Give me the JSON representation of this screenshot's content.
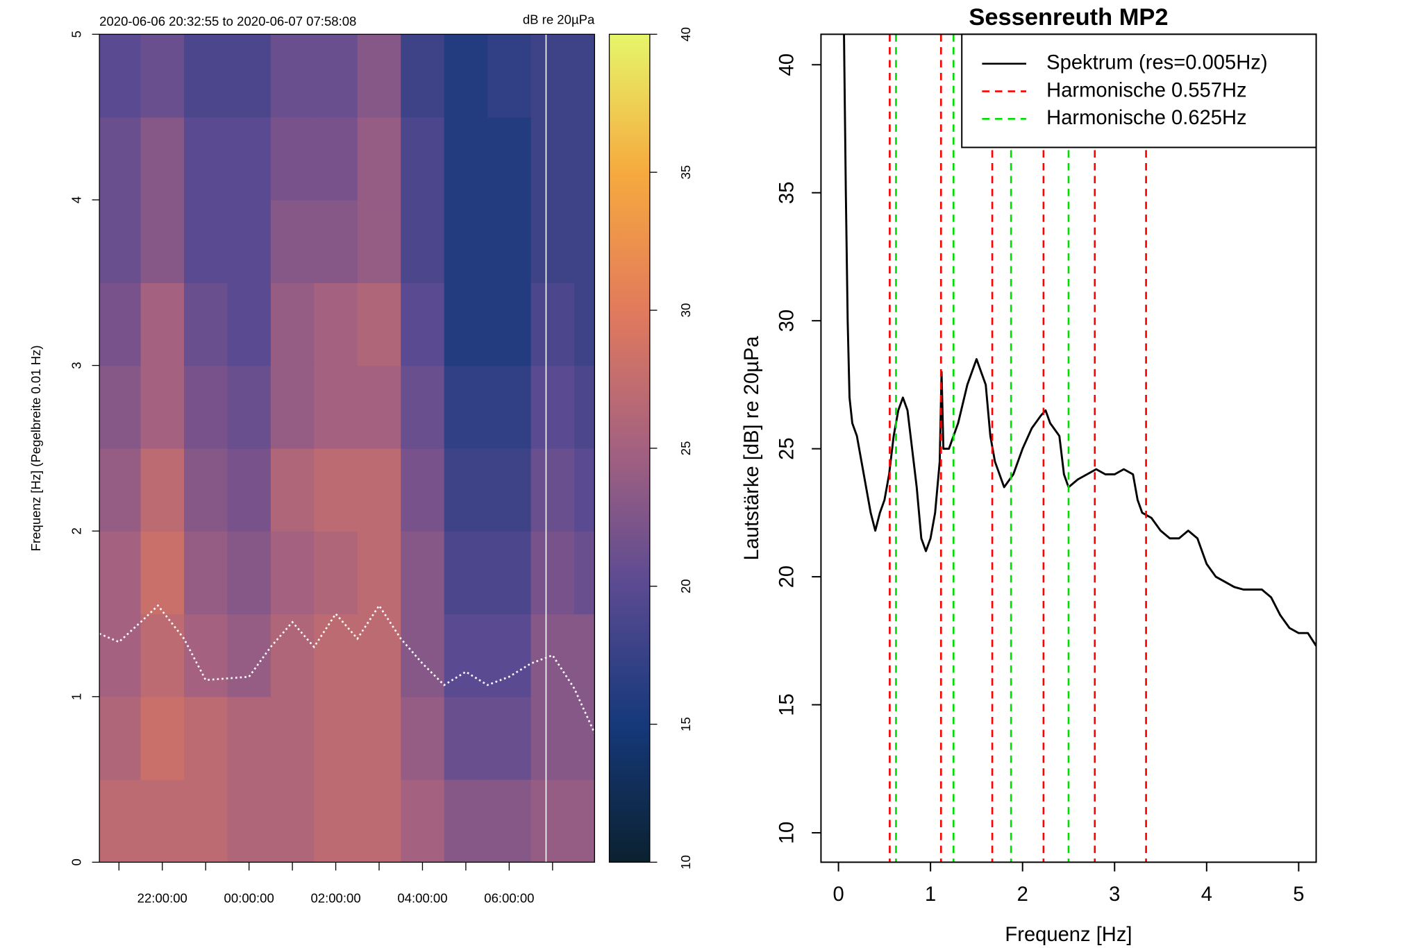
{
  "chart_data": [
    {
      "type": "heatmap",
      "title": "2020-06-06 20:32:55 to 2020-06-07 07:58:08",
      "colorbar_label": "dB re 20µPa",
      "y_label": "Frequenz [Hz] (Pegelbreite 0.01 Hz)",
      "xlim": [
        20.549,
        31.969
      ],
      "xticks": [
        {
          "value": 22,
          "label": "22:00:00"
        },
        {
          "value": 24,
          "label": "00:00:00"
        },
        {
          "value": 26,
          "label": "02:00:00"
        },
        {
          "value": 28,
          "label": "04:00:00"
        },
        {
          "value": 30,
          "label": "06:00:00"
        }
      ],
      "xminorticks": [
        21,
        23,
        25,
        27,
        29,
        31
      ],
      "ylim": [
        0,
        5
      ],
      "yticks": [
        0,
        1,
        2,
        3,
        4,
        5
      ],
      "zlim": [
        10,
        40
      ],
      "zticks": [
        10,
        15,
        20,
        25,
        30,
        35,
        40
      ],
      "colors": [
        "#0b2130",
        "#15397a",
        "#5a4a92",
        "#a46180",
        "#e27a5c",
        "#f6aa3e",
        "#e6f66a"
      ],
      "xbins": [
        20.549,
        21.5,
        22.5,
        23.5,
        24.5,
        25.5,
        26.5,
        27.5,
        28.5,
        29.5,
        30.5,
        31.5,
        31.969
      ],
      "ybins": [
        0,
        0.5,
        1,
        1.5,
        2,
        2.5,
        3,
        3.5,
        4,
        4.5,
        5
      ],
      "z": [
        [
          27,
          27,
          27,
          26,
          26,
          27,
          27,
          25,
          23,
          23,
          24,
          24
        ],
        [
          26,
          28,
          27,
          26,
          26,
          27,
          27,
          24,
          21,
          21,
          23,
          23
        ],
        [
          25,
          27,
          25,
          24,
          26,
          27,
          27,
          23,
          20,
          20,
          23,
          23
        ],
        [
          25,
          28,
          24,
          23,
          25,
          26,
          27,
          23,
          19,
          19,
          22,
          21
        ],
        [
          24,
          27,
          23,
          22,
          26,
          27,
          27,
          22,
          18,
          18,
          21,
          20
        ],
        [
          23,
          25,
          22,
          21,
          24,
          25,
          25,
          21,
          17,
          17,
          20,
          19
        ],
        [
          22,
          25,
          21,
          20,
          24,
          25,
          26,
          20,
          16,
          16,
          19,
          18
        ],
        [
          21,
          23,
          20,
          20,
          23,
          23,
          24,
          19,
          16,
          16,
          18,
          18
        ],
        [
          21,
          23,
          20,
          20,
          22,
          22,
          24,
          19,
          16,
          16,
          18,
          18
        ],
        [
          20,
          21,
          19,
          19,
          21,
          21,
          23,
          18,
          16,
          17,
          18,
          18
        ]
      ],
      "series": [
        {
          "color": "#ffffff",
          "x": [
            20.549,
            21.0,
            21.5,
            21.9,
            22.5,
            23.0,
            24.0,
            24.5,
            25.0,
            25.5,
            26.0,
            26.5,
            27.0,
            27.5,
            28.0,
            28.5,
            29.0,
            29.5,
            30.0,
            30.5,
            31.0,
            31.5,
            31.969
          ],
          "values": [
            1.38,
            1.33,
            1.45,
            1.55,
            1.35,
            1.1,
            1.12,
            1.3,
            1.45,
            1.3,
            1.5,
            1.35,
            1.55,
            1.35,
            1.2,
            1.07,
            1.15,
            1.07,
            1.12,
            1.2,
            1.25,
            1.05,
            0.78
          ]
        }
      ],
      "vlines": [
        30.85
      ],
      "vline_color": "#ffffff"
    },
    {
      "type": "line",
      "title": "Sessenreuth MP2",
      "x_label": "Frequenz [Hz]",
      "y_label": "Lautstärke [dB] re 20µPa",
      "xlim": [
        -0.19,
        5.19
      ],
      "xticks": [
        0,
        1,
        2,
        3,
        4,
        5
      ],
      "ylim": [
        8.85,
        41.19
      ],
      "yticks": [
        10,
        15,
        20,
        25,
        30,
        35,
        40
      ],
      "legend": "top-right",
      "series": [
        {
          "name": "Spektrum (res=0.005Hz)",
          "color": "#000000",
          "x": [
            0.06,
            0.08,
            0.1,
            0.12,
            0.15,
            0.2,
            0.25,
            0.3,
            0.35,
            0.4,
            0.45,
            0.5,
            0.55,
            0.6,
            0.65,
            0.7,
            0.75,
            0.8,
            0.85,
            0.9,
            0.95,
            1.0,
            1.05,
            1.1,
            1.12,
            1.14,
            1.2,
            1.3,
            1.4,
            1.5,
            1.55,
            1.6,
            1.65,
            1.7,
            1.8,
            1.9,
            2.0,
            2.1,
            2.2,
            2.25,
            2.3,
            2.4,
            2.45,
            2.5,
            2.6,
            2.7,
            2.8,
            2.9,
            3.0,
            3.1,
            3.2,
            3.25,
            3.3,
            3.4,
            3.5,
            3.6,
            3.7,
            3.8,
            3.9,
            4.0,
            4.1,
            4.2,
            4.3,
            4.4,
            4.5,
            4.6,
            4.7,
            4.8,
            4.9,
            5.0,
            5.1,
            5.19
          ],
          "values": [
            41.19,
            35,
            30,
            27,
            26,
            25.5,
            24.5,
            23.5,
            22.5,
            21.8,
            22.5,
            23,
            24,
            25.5,
            26.5,
            27,
            26.5,
            25,
            23.5,
            21.5,
            21,
            21.5,
            22.5,
            24.5,
            28,
            25,
            25,
            26,
            27.5,
            28.5,
            28,
            27.5,
            25.5,
            24.5,
            23.5,
            24,
            25,
            25.8,
            26.3,
            26.5,
            26,
            25.5,
            24,
            23.5,
            23.8,
            24,
            24.2,
            24,
            24,
            24.2,
            24,
            23,
            22.5,
            22.3,
            21.8,
            21.5,
            21.5,
            21.8,
            21.5,
            20.5,
            20,
            19.8,
            19.6,
            19.5,
            19.5,
            19.5,
            19.2,
            18.5,
            18,
            17.8,
            17.8,
            17.3
          ]
        },
        {
          "name": "Harmonische 0.557Hz",
          "color": "#ff0000",
          "style": "vline",
          "x": [
            0.557,
            1.114,
            1.671,
            2.228,
            2.785,
            3.342
          ]
        },
        {
          "name": "Harmonische 0.625Hz",
          "color": "#00dd00",
          "style": "vline",
          "x": [
            0.625,
            1.25,
            1.875,
            2.5
          ]
        }
      ]
    }
  ]
}
